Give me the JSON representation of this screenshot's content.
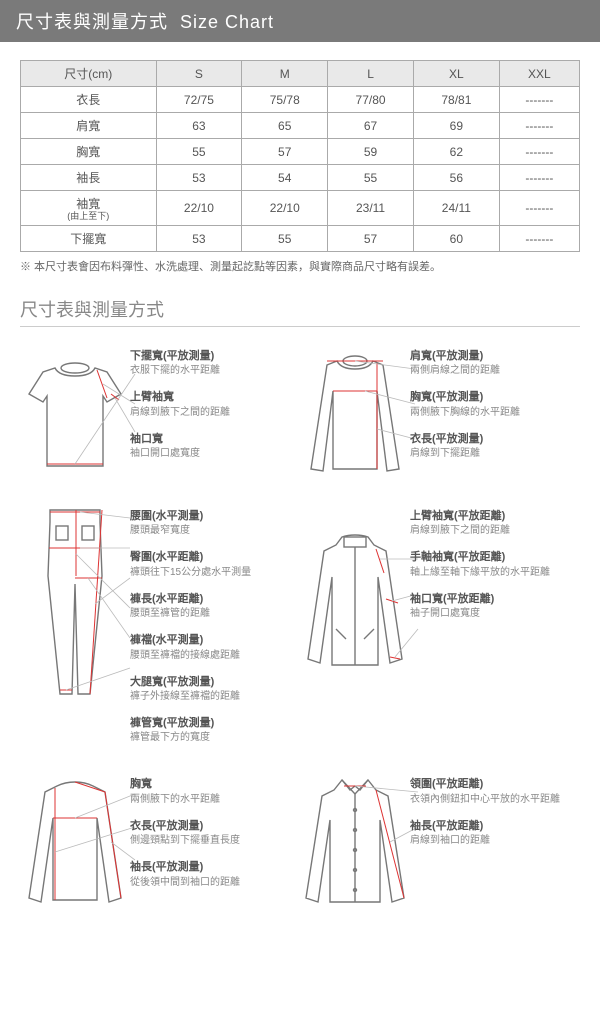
{
  "header": {
    "title_cn": "尺寸表與測量方式",
    "title_en": "Size Chart"
  },
  "table": {
    "headers": [
      "尺寸(cm)",
      "S",
      "M",
      "L",
      "XL",
      "XXL"
    ],
    "rows": [
      {
        "label": "衣長",
        "cells": [
          "72/75",
          "75/78",
          "77/80",
          "78/81",
          "-------"
        ]
      },
      {
        "label": "肩寬",
        "cells": [
          "63",
          "65",
          "67",
          "69",
          "-------"
        ]
      },
      {
        "label": "胸寬",
        "cells": [
          "55",
          "57",
          "59",
          "62",
          "-------"
        ]
      },
      {
        "label": "袖長",
        "cells": [
          "53",
          "54",
          "55",
          "56",
          "-------"
        ]
      },
      {
        "label": "袖寬",
        "sub": "(由上至下)",
        "cells": [
          "22/10",
          "22/10",
          "23/11",
          "24/11",
          "-------"
        ]
      },
      {
        "label": "下擺寬",
        "cells": [
          "53",
          "55",
          "57",
          "60",
          "-------"
        ]
      }
    ]
  },
  "note": "※ 本尺寸表會因布料彈性、水洗處理、測量起訖點等因素，與實際商品尺寸略有誤差。",
  "sub_title": "尺寸表與測量方式",
  "diagrams": [
    {
      "left": {
        "items": [
          {
            "title": "下擺寬(平放測量)",
            "desc": "衣服下擺的水平距離"
          },
          {
            "title": "上臂袖寬",
            "desc": "肩線到腋下之間的距離"
          },
          {
            "title": "袖口寬",
            "desc": "袖口開口處寬度"
          }
        ]
      },
      "right": {
        "items": [
          {
            "title": "肩寬(平放測量)",
            "desc": "兩側肩線之間的距離"
          },
          {
            "title": "胸寬(平放測量)",
            "desc": "兩側腋下胸線的水平距離"
          },
          {
            "title": "衣長(平放測量)",
            "desc": "肩線到下擺距離"
          }
        ]
      }
    },
    {
      "left": {
        "items": [
          {
            "title": "腰圍(水平測量)",
            "desc": "腰頭最窄寬度"
          },
          {
            "title": "臀圍(水平距離)",
            "desc": "褲頭往下15公分處水平測量"
          },
          {
            "title": "褲長(水平距離)",
            "desc": "腰頭至褲管的距離"
          },
          {
            "title": "褲襠(水平測量)",
            "desc": "腰頭至褲襠的接線處距離"
          },
          {
            "title": "大腿寬(平放測量)",
            "desc": "褲子外接線至褲襠的距離"
          },
          {
            "title": "褲管寬(平放測量)",
            "desc": "褲管最下方的寬度"
          }
        ]
      },
      "right": {
        "items": [
          {
            "title": "上臂袖寬(平放距離)",
            "desc": "肩線到腋下之間的距離"
          },
          {
            "title": "手軸袖寬(平放距離)",
            "desc": "軸上緣至軸下緣平放的水平距離"
          },
          {
            "title": "袖口寬(平放距離)",
            "desc": "袖子開口處寬度"
          }
        ]
      }
    },
    {
      "left": {
        "items": [
          {
            "title": "胸寬",
            "desc": "兩側腋下的水平距離"
          },
          {
            "title": "衣長(平放測量)",
            "desc": "側邊頸點到下擺垂直長度"
          },
          {
            "title": "袖長(平放測量)",
            "desc": "從後領中間到袖口的距離"
          }
        ]
      },
      "right": {
        "items": [
          {
            "title": "領圍(平放距離)",
            "desc": "衣領內側鈕扣中心平放的水平距離"
          },
          {
            "title": "袖長(平放距離)",
            "desc": "肩線到袖口的距離"
          }
        ]
      }
    }
  ]
}
